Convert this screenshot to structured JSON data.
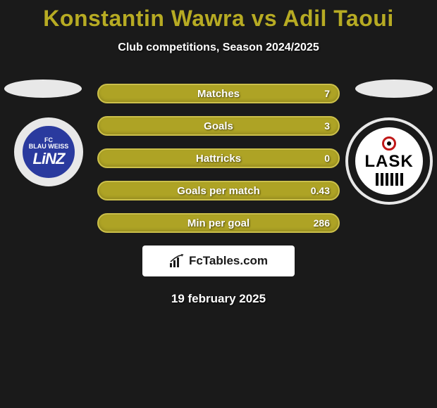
{
  "title_color": "#b7ab23",
  "title": "Konstantin Wawra vs Adil Taoui",
  "subtitle": "Club competitions, Season 2024/2025",
  "background_color": "#1a1a1a",
  "bar_fill_color": "#aea325",
  "bar_border_color": "#ccc04a",
  "ellipse_color": "#e8e8e8",
  "left_club": {
    "name": "FC Blau Weiss Linz",
    "line1": "FC",
    "line2": "BLAU WEISS",
    "line3": "LiNZ",
    "badge_bg": "#2a3a9e",
    "badge_ring": "#e8e8e8"
  },
  "right_club": {
    "name": "LASK",
    "text": "LASK",
    "badge_bg": "#ffffff",
    "ring_color": "#c01818"
  },
  "stats": [
    {
      "label": "Matches",
      "value": "7"
    },
    {
      "label": "Goals",
      "value": "3"
    },
    {
      "label": "Hattricks",
      "value": "0"
    },
    {
      "label": "Goals per match",
      "value": "0.43"
    },
    {
      "label": "Min per goal",
      "value": "286"
    }
  ],
  "footer_logo": "FcTables.com",
  "date": "19 february 2025"
}
